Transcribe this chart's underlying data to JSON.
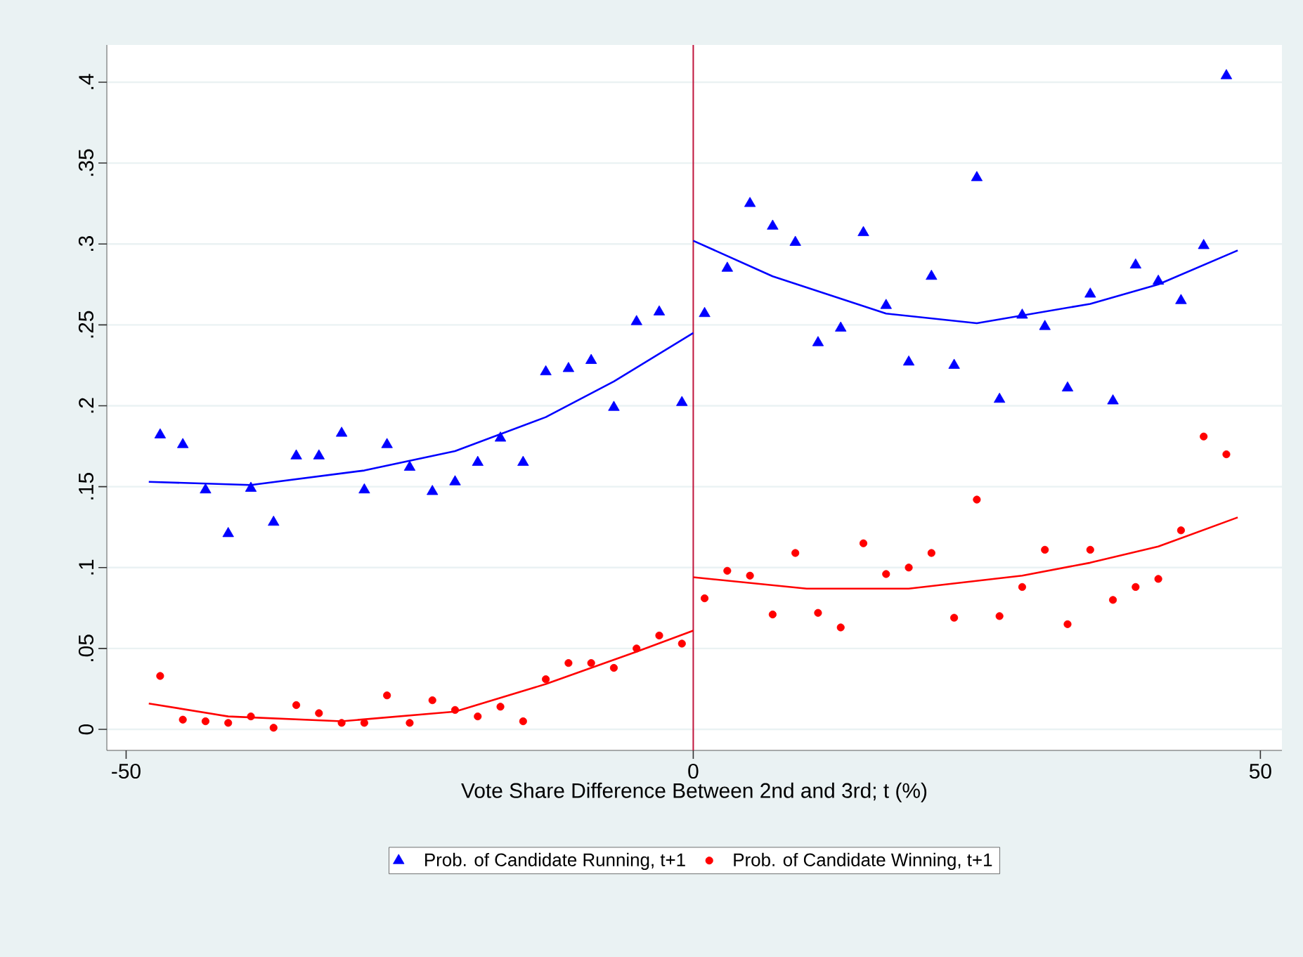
{
  "chart_data": {
    "type": "scatter",
    "xlabel": "Vote Share Difference Between 2nd and 3rd; t (%)",
    "x": [
      -47,
      -45,
      -43,
      -41,
      -39,
      -37,
      -35,
      -33,
      -31,
      -29,
      -27,
      -25,
      -23,
      -21,
      -19,
      -17,
      -15,
      -13,
      -11,
      -9,
      -7,
      -5,
      -3,
      -1,
      1,
      3,
      5,
      7,
      9,
      11,
      13,
      15,
      17,
      19,
      21,
      23,
      25,
      27,
      29,
      31,
      33,
      35,
      37,
      39,
      41,
      43,
      45,
      47
    ],
    "series": [
      {
        "name": "Prob. of Candidate Running, t+1",
        "color": "#0000ff",
        "marker": "triangle",
        "values": [
          0.182,
          0.176,
          0.148,
          0.121,
          0.149,
          0.128,
          0.169,
          0.169,
          0.183,
          0.148,
          0.176,
          0.162,
          0.147,
          0.153,
          0.165,
          0.18,
          0.165,
          0.221,
          0.223,
          0.228,
          0.199,
          0.252,
          0.258,
          0.202,
          0.257,
          0.285,
          0.325,
          0.311,
          0.301,
          0.239,
          0.248,
          0.307,
          0.262,
          0.227,
          0.28,
          0.225,
          0.341,
          0.204,
          0.256,
          0.249,
          0.211,
          0.269,
          0.203,
          0.287,
          0.277,
          0.265,
          0.299,
          0.404
        ]
      },
      {
        "name": "Prob. of Candidate Winning, t+1",
        "color": "#ff0000",
        "marker": "circle",
        "values": [
          0.033,
          0.006,
          0.005,
          0.004,
          0.008,
          0.001,
          0.015,
          0.01,
          0.004,
          0.004,
          0.021,
          0.004,
          0.018,
          0.012,
          0.008,
          0.014,
          0.005,
          0.031,
          0.041,
          0.041,
          0.038,
          0.05,
          0.058,
          0.053,
          0.081,
          0.098,
          0.095,
          0.071,
          0.109,
          0.072,
          0.063,
          0.115,
          0.096,
          0.1,
          0.109,
          0.069,
          0.142,
          0.07,
          0.088,
          0.111,
          0.065,
          0.111,
          0.08,
          0.088,
          0.093,
          0.123,
          0.181,
          0.17
        ]
      },
      {
        "type": "line",
        "color": "#0000ff",
        "x": [
          -48,
          -39,
          -29,
          -21,
          -13,
          -7,
          0
        ],
        "values": [
          0.153,
          0.151,
          0.16,
          0.172,
          0.193,
          0.215,
          0.245
        ]
      },
      {
        "type": "line",
        "color": "#0000ff",
        "x": [
          0,
          7,
          17,
          25,
          35,
          41,
          48
        ],
        "values": [
          0.302,
          0.28,
          0.257,
          0.251,
          0.263,
          0.275,
          0.296
        ]
      },
      {
        "type": "line",
        "color": "#ff0000",
        "x": [
          -48,
          -41,
          -31,
          -21,
          -13,
          -5,
          0
        ],
        "values": [
          0.016,
          0.008,
          0.005,
          0.011,
          0.028,
          0.048,
          0.061
        ]
      },
      {
        "type": "line",
        "color": "#ff0000",
        "x": [
          0,
          10,
          19,
          29,
          35,
          41,
          48
        ],
        "values": [
          0.094,
          0.087,
          0.087,
          0.095,
          0.103,
          0.113,
          0.131
        ]
      }
    ],
    "xlim": [
      -51.7,
      51.9
    ],
    "ylim": [
      -0.013,
      0.423
    ],
    "xticks": [
      -50,
      0,
      50
    ],
    "yticks": [
      0,
      {
        "value": 0.05,
        "label": ".05"
      },
      {
        "value": 0.1,
        "label": ".1"
      },
      {
        "value": 0.15,
        "label": ".15"
      },
      {
        "value": 0.2,
        "label": ".2"
      },
      {
        "value": 0.25,
        "label": ".25"
      },
      {
        "value": 0.3,
        "label": ".3"
      },
      {
        "value": 0.35,
        "label": ".35"
      },
      {
        "value": 0.4,
        "label": ".4"
      }
    ],
    "ref_lines": [
      {
        "axis": "x",
        "value": 0,
        "color": "#c0143c"
      }
    ],
    "grid": "y",
    "legend": "bottom"
  }
}
